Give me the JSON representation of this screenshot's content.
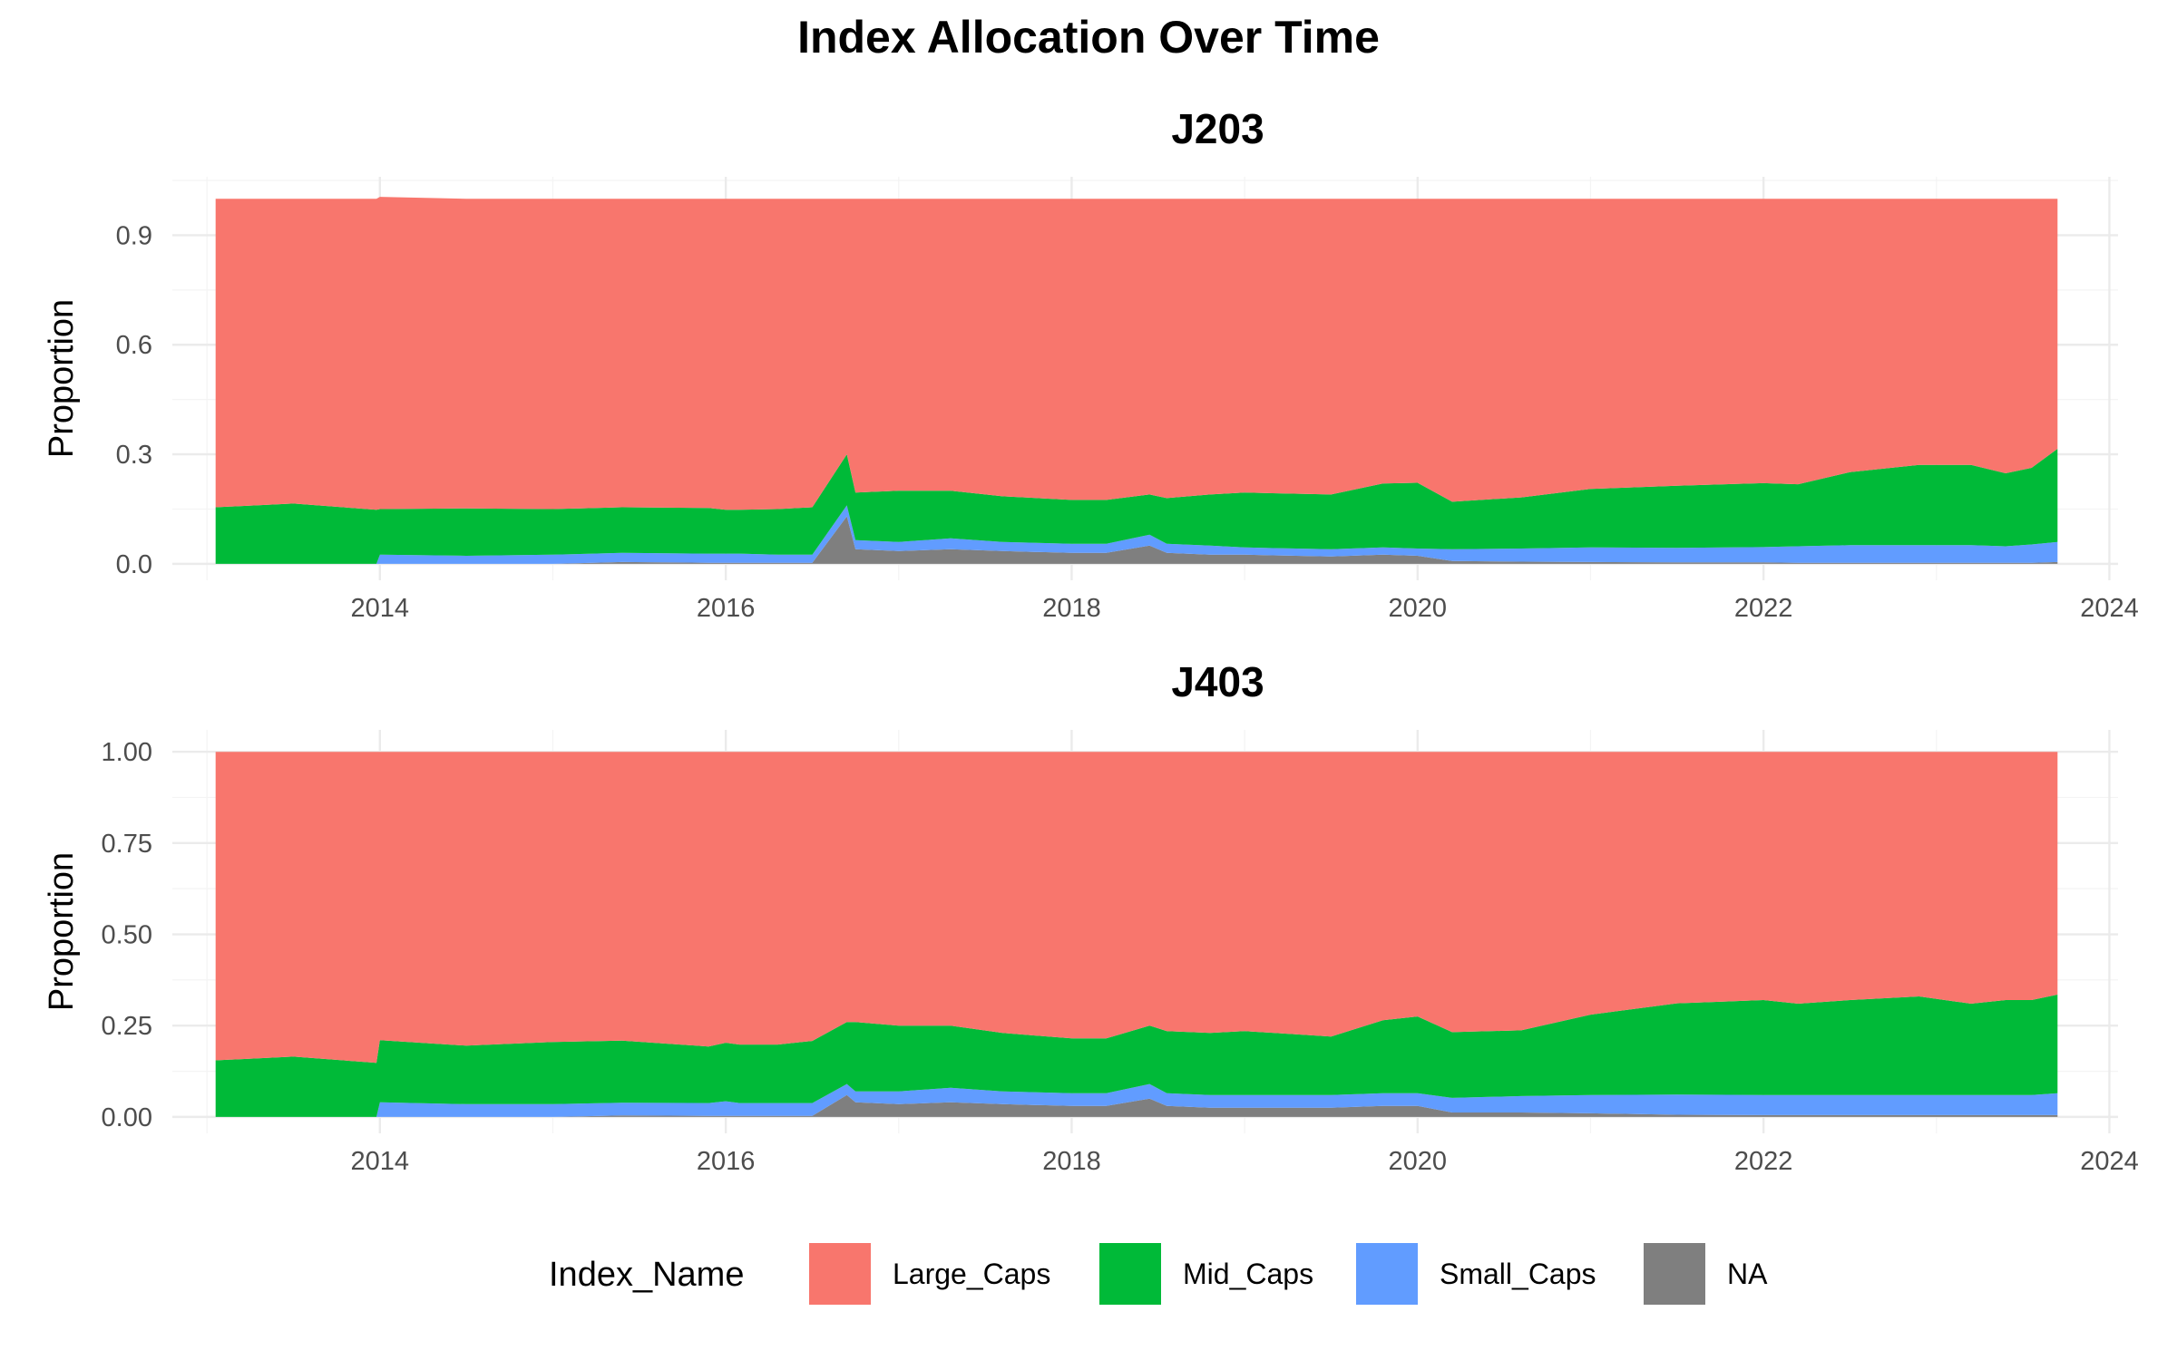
{
  "chart_data": {
    "type": "area",
    "title": "Index Allocation Over Time",
    "legend": {
      "title": "Index_Name",
      "position": "bottom",
      "entries": [
        {
          "name": "Large_Caps",
          "color": "#F8766D"
        },
        {
          "name": "Mid_Caps",
          "color": "#00BA38"
        },
        {
          "name": "Small_Caps",
          "color": "#619CFF"
        },
        {
          "name": "NA",
          "color": "#7F7F7F"
        }
      ]
    },
    "grid": true,
    "panels": [
      {
        "title": "J203",
        "ylabel": "Proportion",
        "xlim": [
          2012.8,
          2024.05
        ],
        "ylim": [
          -0.045,
          1.06
        ],
        "yticks": [
          0.0,
          0.3,
          0.6,
          0.9
        ],
        "ytick_labels": [
          "0.0",
          "0.3",
          "0.6",
          "0.9"
        ],
        "xticks": [
          2014,
          2016,
          2018,
          2020,
          2022,
          2024
        ],
        "xtick_labels": [
          "2014",
          "2016",
          "2018",
          "2020",
          "2022",
          "2024"
        ],
        "x": [
          2013.05,
          2013.5,
          2013.98,
          2014.0,
          2014.5,
          2015.0,
          2015.4,
          2015.9,
          2016.0,
          2016.08,
          2016.3,
          2016.5,
          2016.7,
          2016.75,
          2017.0,
          2017.3,
          2017.6,
          2018.0,
          2018.2,
          2018.45,
          2018.55,
          2018.8,
          2019.0,
          2019.5,
          2019.8,
          2020.0,
          2020.2,
          2020.6,
          2021.0,
          2021.5,
          2022.0,
          2022.2,
          2022.5,
          2022.9,
          2023.2,
          2023.4,
          2023.55,
          2023.7
        ],
        "series": [
          {
            "name": "NA",
            "values": [
              0,
              0,
              0,
              0,
              0,
              0,
              0.005,
              0.003,
              0.003,
              0.003,
              0.003,
              0.003,
              0.13,
              0.04,
              0.035,
              0.04,
              0.035,
              0.03,
              0.03,
              0.05,
              0.03,
              0.025,
              0.025,
              0.02,
              0.025,
              0.022,
              0.008,
              0.006,
              0.005,
              0.004,
              0.004,
              0.003,
              0.003,
              0.003,
              0.003,
              0.003,
              0.003,
              0.005
            ]
          },
          {
            "name": "Small_Caps",
            "values": [
              0,
              0,
              0,
              0.025,
              0.022,
              0.025,
              0.025,
              0.025,
              0.025,
              0.025,
              0.022,
              0.022,
              0.03,
              0.025,
              0.025,
              0.03,
              0.025,
              0.025,
              0.025,
              0.03,
              0.025,
              0.025,
              0.02,
              0.02,
              0.02,
              0.02,
              0.032,
              0.036,
              0.04,
              0.04,
              0.042,
              0.045,
              0.048,
              0.048,
              0.048,
              0.045,
              0.05,
              0.055
            ]
          },
          {
            "name": "Mid_Caps",
            "values": [
              0.155,
              0.165,
              0.148,
              0.125,
              0.13,
              0.125,
              0.125,
              0.125,
              0.12,
              0.12,
              0.125,
              0.13,
              0.14,
              0.13,
              0.14,
              0.13,
              0.125,
              0.12,
              0.12,
              0.11,
              0.125,
              0.14,
              0.15,
              0.15,
              0.175,
              0.18,
              0.13,
              0.14,
              0.16,
              0.17,
              0.175,
              0.17,
              0.2,
              0.22,
              0.22,
              0.2,
              0.21,
              0.255
            ]
          },
          {
            "name": "Large_Caps",
            "values": [
              0.845,
              0.835,
              0.852,
              0.855,
              0.848,
              0.85,
              0.845,
              0.847,
              0.852,
              0.852,
              0.85,
              0.845,
              0.7,
              0.805,
              0.8,
              0.8,
              0.815,
              0.825,
              0.825,
              0.81,
              0.82,
              0.81,
              0.805,
              0.81,
              0.78,
              0.778,
              0.83,
              0.818,
              0.795,
              0.786,
              0.779,
              0.782,
              0.749,
              0.729,
              0.729,
              0.752,
              0.737,
              0.685
            ]
          }
        ]
      },
      {
        "title": "J403",
        "ylabel": "Proportion",
        "xlim": [
          2012.8,
          2024.05
        ],
        "ylim": [
          -0.045,
          1.06
        ],
        "yticks": [
          0.0,
          0.25,
          0.5,
          0.75,
          1.0
        ],
        "ytick_labels": [
          "0.00",
          "0.25",
          "0.50",
          "0.75",
          "1.00"
        ],
        "xticks": [
          2014,
          2016,
          2018,
          2020,
          2022,
          2024
        ],
        "xtick_labels": [
          "2014",
          "2016",
          "2018",
          "2020",
          "2022",
          "2024"
        ],
        "x": [
          2013.05,
          2013.5,
          2013.98,
          2014.0,
          2014.5,
          2015.0,
          2015.4,
          2015.9,
          2016.0,
          2016.08,
          2016.3,
          2016.5,
          2016.7,
          2016.75,
          2017.0,
          2017.3,
          2017.6,
          2018.0,
          2018.2,
          2018.45,
          2018.55,
          2018.8,
          2019.0,
          2019.5,
          2019.8,
          2020.0,
          2020.2,
          2020.6,
          2021.0,
          2021.5,
          2022.0,
          2022.2,
          2022.5,
          2022.9,
          2023.2,
          2023.4,
          2023.55,
          2023.7
        ],
        "series": [
          {
            "name": "NA",
            "values": [
              0,
              0,
              0,
              0,
              0,
              0,
              0.004,
              0.003,
              0.003,
              0.003,
              0.003,
              0.003,
              0.06,
              0.04,
              0.035,
              0.04,
              0.035,
              0.03,
              0.03,
              0.05,
              0.03,
              0.025,
              0.025,
              0.025,
              0.03,
              0.03,
              0.012,
              0.012,
              0.01,
              0.006,
              0.005,
              0.005,
              0.005,
              0.005,
              0.005,
              0.005,
              0.005,
              0.005
            ]
          },
          {
            "name": "Small_Caps",
            "values": [
              0,
              0,
              0,
              0.04,
              0.035,
              0.035,
              0.035,
              0.035,
              0.04,
              0.035,
              0.035,
              0.035,
              0.03,
              0.03,
              0.035,
              0.04,
              0.035,
              0.035,
              0.035,
              0.04,
              0.035,
              0.035,
              0.035,
              0.035,
              0.035,
              0.035,
              0.04,
              0.045,
              0.05,
              0.055,
              0.055,
              0.055,
              0.055,
              0.055,
              0.055,
              0.055,
              0.055,
              0.06
            ]
          },
          {
            "name": "Mid_Caps",
            "values": [
              0.155,
              0.165,
              0.148,
              0.17,
              0.16,
              0.17,
              0.17,
              0.155,
              0.16,
              0.16,
              0.16,
              0.17,
              0.17,
              0.19,
              0.18,
              0.17,
              0.16,
              0.15,
              0.15,
              0.16,
              0.17,
              0.17,
              0.175,
              0.16,
              0.2,
              0.21,
              0.18,
              0.18,
              0.22,
              0.25,
              0.26,
              0.25,
              0.26,
              0.27,
              0.25,
              0.26,
              0.26,
              0.27
            ]
          },
          {
            "name": "Large_Caps",
            "values": [
              0.845,
              0.835,
              0.852,
              0.79,
              0.805,
              0.795,
              0.791,
              0.807,
              0.797,
              0.802,
              0.802,
              0.792,
              0.74,
              0.74,
              0.75,
              0.75,
              0.77,
              0.785,
              0.785,
              0.75,
              0.765,
              0.77,
              0.765,
              0.78,
              0.735,
              0.725,
              0.768,
              0.763,
              0.72,
              0.689,
              0.68,
              0.69,
              0.68,
              0.67,
              0.69,
              0.68,
              0.68,
              0.665
            ]
          }
        ]
      }
    ]
  }
}
